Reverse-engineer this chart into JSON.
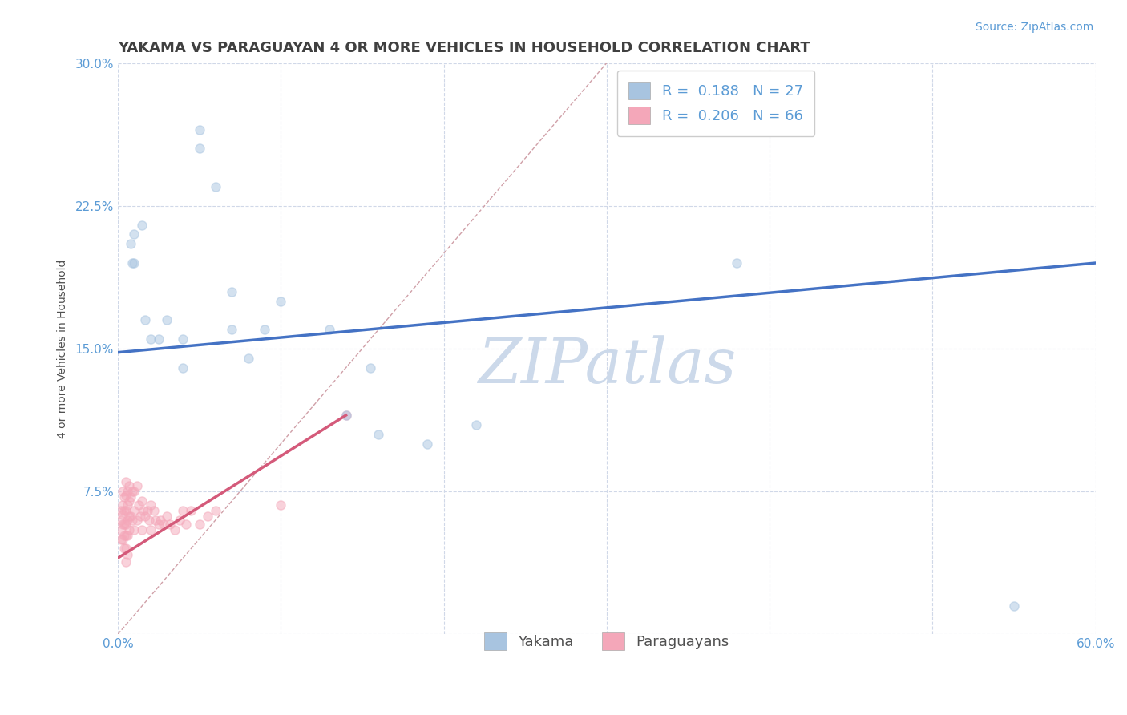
{
  "title": "YAKAMA VS PARAGUAYAN 4 OR MORE VEHICLES IN HOUSEHOLD CORRELATION CHART",
  "source": "Source: ZipAtlas.com",
  "ylabel_label": "4 or more Vehicles in Household",
  "xlim": [
    0.0,
    0.6
  ],
  "ylim": [
    0.0,
    0.3
  ],
  "xticks": [
    0.0,
    0.1,
    0.2,
    0.3,
    0.4,
    0.5,
    0.6
  ],
  "yticks": [
    0.0,
    0.075,
    0.15,
    0.225,
    0.3
  ],
  "legend_r_yakama": "0.188",
  "legend_n_yakama": "27",
  "legend_r_paraguayan": "0.206",
  "legend_n_paraguayan": "66",
  "yakama_color": "#a8c4e0",
  "paraguayan_color": "#f4a7b9",
  "yakama_line_color": "#4472c4",
  "paraguayan_line_color": "#d45a7a",
  "diagonal_color": "#d0a0a8",
  "title_color": "#404040",
  "source_color": "#5b9bd5",
  "axis_label_color": "#505050",
  "tick_color": "#5b9bd5",
  "background_color": "#ffffff",
  "grid_color": "#d0d8e8",
  "watermark_color": "#ccd9ea",
  "title_fontsize": 13,
  "source_fontsize": 10,
  "ylabel_fontsize": 10,
  "tick_fontsize": 11,
  "legend_fontsize": 13,
  "watermark_fontsize": 56,
  "scatter_size": 65,
  "scatter_alpha": 0.5,
  "yakama_x": [
    0.008,
    0.009,
    0.01,
    0.01,
    0.015,
    0.017,
    0.02,
    0.025,
    0.03,
    0.04,
    0.04,
    0.05,
    0.05,
    0.06,
    0.07,
    0.07,
    0.08,
    0.09,
    0.1,
    0.13,
    0.14,
    0.155,
    0.16,
    0.19,
    0.22,
    0.38,
    0.55
  ],
  "yakama_y": [
    0.205,
    0.195,
    0.21,
    0.195,
    0.215,
    0.165,
    0.155,
    0.155,
    0.165,
    0.155,
    0.14,
    0.265,
    0.255,
    0.235,
    0.18,
    0.16,
    0.145,
    0.16,
    0.175,
    0.16,
    0.115,
    0.14,
    0.105,
    0.1,
    0.11,
    0.195,
    0.015
  ],
  "paraguayan_x": [
    0.002,
    0.002,
    0.002,
    0.002,
    0.003,
    0.003,
    0.003,
    0.003,
    0.003,
    0.004,
    0.004,
    0.004,
    0.004,
    0.004,
    0.005,
    0.005,
    0.005,
    0.005,
    0.005,
    0.005,
    0.005,
    0.006,
    0.006,
    0.006,
    0.006,
    0.006,
    0.007,
    0.007,
    0.007,
    0.007,
    0.008,
    0.008,
    0.009,
    0.009,
    0.01,
    0.01,
    0.01,
    0.012,
    0.012,
    0.013,
    0.014,
    0.015,
    0.015,
    0.016,
    0.017,
    0.018,
    0.019,
    0.02,
    0.02,
    0.022,
    0.023,
    0.025,
    0.026,
    0.028,
    0.03,
    0.032,
    0.035,
    0.038,
    0.04,
    0.042,
    0.045,
    0.05,
    0.055,
    0.06,
    0.1,
    0.14
  ],
  "paraguayan_y": [
    0.065,
    0.06,
    0.055,
    0.05,
    0.075,
    0.068,
    0.063,
    0.058,
    0.05,
    0.072,
    0.065,
    0.058,
    0.052,
    0.045,
    0.08,
    0.073,
    0.065,
    0.058,
    0.052,
    0.045,
    0.038,
    0.075,
    0.068,
    0.06,
    0.052,
    0.042,
    0.078,
    0.07,
    0.062,
    0.055,
    0.072,
    0.062,
    0.075,
    0.06,
    0.075,
    0.065,
    0.055,
    0.078,
    0.06,
    0.068,
    0.062,
    0.07,
    0.055,
    0.065,
    0.062,
    0.065,
    0.06,
    0.068,
    0.055,
    0.065,
    0.06,
    0.058,
    0.06,
    0.058,
    0.062,
    0.058,
    0.055,
    0.06,
    0.065,
    0.058,
    0.065,
    0.058,
    0.062,
    0.065,
    0.068,
    0.115
  ]
}
